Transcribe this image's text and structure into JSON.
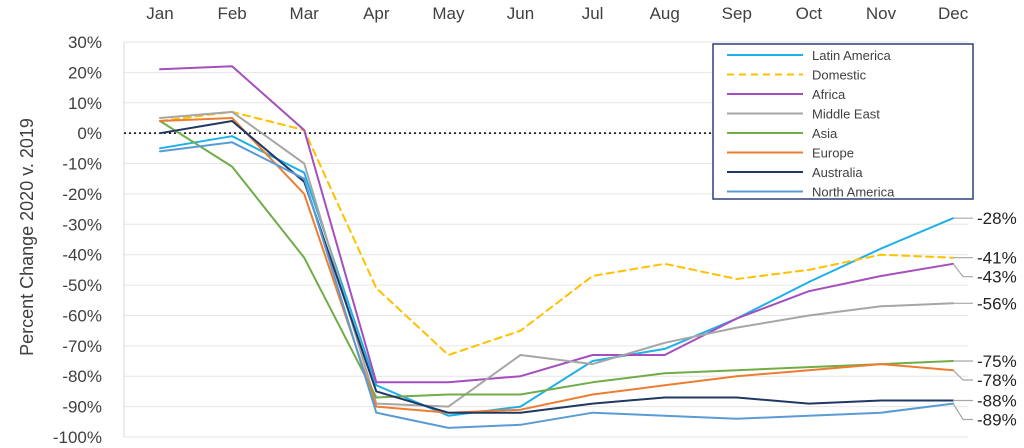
{
  "chart_data": {
    "type": "line",
    "ylabel": "Percent Change 2020 v. 2019",
    "ylim": [
      -100,
      30
    ],
    "y_ticks": [
      "30%",
      "20%",
      "10%",
      "0%",
      "-10%",
      "-20%",
      "-30%",
      "-40%",
      "-50%",
      "-60%",
      "-70%",
      "-80%",
      "-90%",
      "-100%"
    ],
    "x_axis_position": "top",
    "categories": [
      "Jan",
      "Feb",
      "Mar",
      "Apr",
      "May",
      "Jun",
      "Jul",
      "Aug",
      "Sep",
      "Oct",
      "Nov",
      "Dec"
    ],
    "zero_line": "dotted",
    "legend_position": "top-right",
    "series": [
      {
        "name": "Latin America",
        "color": "#1fb0e8",
        "dash": "solid",
        "values": [
          -5,
          -1,
          -13,
          -83,
          -93,
          -90,
          -75,
          -71,
          -61,
          -49,
          -38,
          -28
        ],
        "end_label": "-28%"
      },
      {
        "name": "Domestic",
        "color": "#ffc000",
        "dash": "dashed",
        "values": [
          4,
          7,
          1,
          -51,
          -73,
          -65,
          -47,
          -43,
          -48,
          -45,
          -40,
          -41
        ],
        "end_label": "-41%"
      },
      {
        "name": "Africa",
        "color": "#a44ebf",
        "dash": "solid",
        "values": [
          21,
          22,
          1,
          -82,
          -82,
          -80,
          -73,
          -73,
          -61,
          -52,
          -47,
          -43
        ],
        "end_label": "-43%"
      },
      {
        "name": "Middle East",
        "color": "#a6a6a6",
        "dash": "solid",
        "values": [
          5,
          7,
          -10,
          -89,
          -90,
          -73,
          -76,
          -69,
          -64,
          -60,
          -57,
          -56
        ],
        "end_label": "-56%"
      },
      {
        "name": "Asia",
        "color": "#70ad47",
        "dash": "solid",
        "values": [
          4,
          -11,
          -41,
          -87,
          -86,
          -86,
          -82,
          -79,
          -78,
          -77,
          -76,
          -75
        ],
        "end_label": "-75%"
      },
      {
        "name": "Europe",
        "color": "#ed7d31",
        "dash": "solid",
        "values": [
          4,
          5,
          -20,
          -90,
          -92,
          -91,
          -86,
          -83,
          -80,
          -78,
          -76,
          -78
        ],
        "end_label": "-78%"
      },
      {
        "name": "Australia",
        "color": "#203864",
        "dash": "solid",
        "values": [
          0,
          4,
          -16,
          -85,
          -92,
          -92,
          -89,
          -87,
          -87,
          -89,
          -88,
          -88
        ],
        "end_label": "-88%"
      },
      {
        "name": "North America",
        "color": "#5b9bd5",
        "dash": "solid",
        "values": [
          -6,
          -3,
          -15,
          -92,
          -97,
          -96,
          -92,
          -93,
          -94,
          -93,
          -92,
          -89
        ],
        "end_label": "-89%"
      }
    ]
  }
}
